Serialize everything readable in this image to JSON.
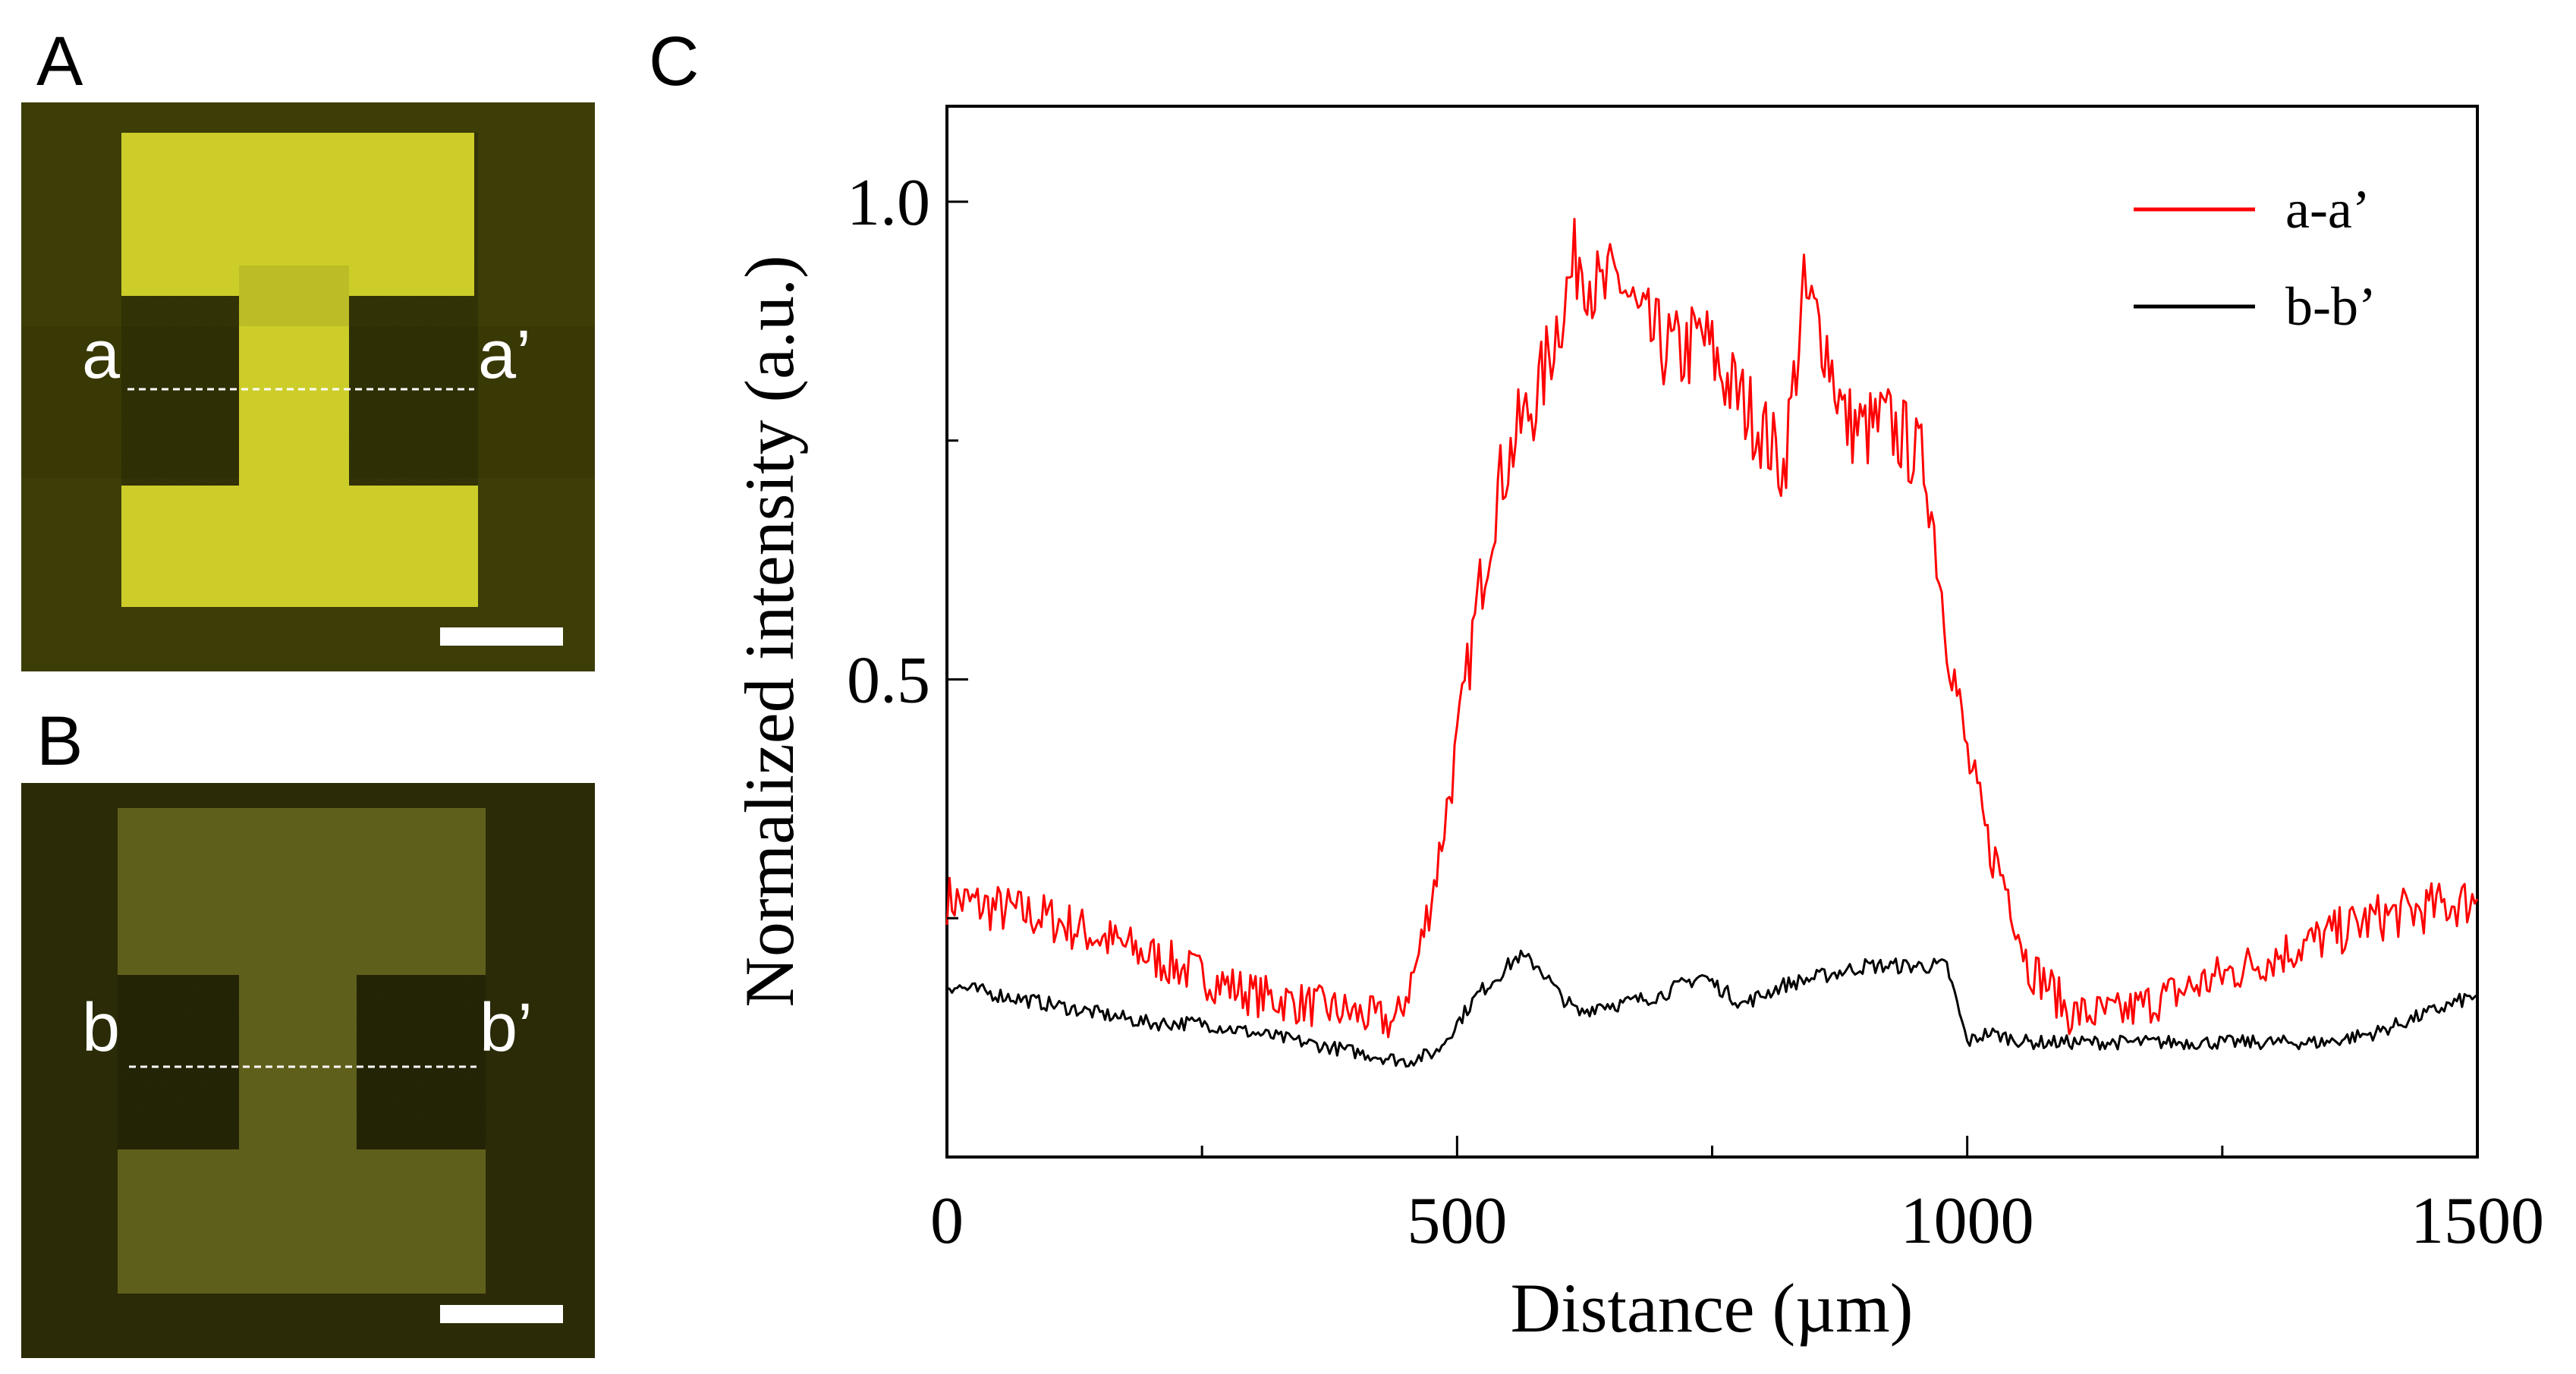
{
  "panels": {
    "a": {
      "letter": "A",
      "left_label": "a",
      "right_label": "a’"
    },
    "b": {
      "letter": "B",
      "left_label": "b",
      "right_label": "b’"
    },
    "c": {
      "letter": "C"
    }
  },
  "colors": {
    "image_a_bg": "#3d3d07",
    "image_a_shape": "#cdcd2a",
    "image_b_bg": "#2b2b07",
    "image_b_shape": "#5f5f1c",
    "series_aa": "#ff0000",
    "series_bb": "#000000"
  },
  "chart_data": {
    "type": "line",
    "title": "",
    "xlabel": "Distance (µm)",
    "ylabel": "Normalized intensity (a.u.)",
    "xlim": [
      0,
      1500
    ],
    "ylim": [
      0.0,
      1.1
    ],
    "xticks": [
      0,
      500,
      1000,
      1500
    ],
    "xtick_labels": [
      "0",
      "500",
      "1000",
      "1500"
    ],
    "yticks": [
      0.5,
      1.0
    ],
    "ytick_labels": [
      "0.5",
      "1.0"
    ],
    "legend_position": "top-right",
    "series": [
      {
        "name": "a-a’",
        "x": [
          0,
          50,
          100,
          150,
          200,
          250,
          300,
          350,
          400,
          440,
          460,
          480,
          500,
          520,
          540,
          560,
          580,
          600,
          620,
          640,
          660,
          680,
          700,
          720,
          740,
          760,
          780,
          800,
          820,
          840,
          860,
          880,
          900,
          920,
          940,
          960,
          980,
          1000,
          1020,
          1040,
          1060,
          1080,
          1100,
          1150,
          1200,
          1250,
          1300,
          1350,
          1400,
          1450,
          1500
        ],
        "y": [
          0.27,
          0.26,
          0.25,
          0.23,
          0.21,
          0.19,
          0.17,
          0.16,
          0.15,
          0.14,
          0.2,
          0.3,
          0.43,
          0.58,
          0.7,
          0.76,
          0.8,
          0.88,
          0.95,
          0.9,
          0.92,
          0.87,
          0.85,
          0.84,
          0.86,
          0.82,
          0.79,
          0.76,
          0.72,
          0.9,
          0.86,
          0.77,
          0.76,
          0.77,
          0.75,
          0.72,
          0.55,
          0.42,
          0.33,
          0.28,
          0.2,
          0.18,
          0.15,
          0.15,
          0.17,
          0.19,
          0.21,
          0.23,
          0.25,
          0.26,
          0.27
        ]
      },
      {
        "name": "b-b’",
        "x": [
          0,
          50,
          100,
          150,
          200,
          250,
          300,
          350,
          400,
          450,
          480,
          500,
          520,
          540,
          560,
          580,
          600,
          620,
          640,
          660,
          700,
          740,
          780,
          820,
          860,
          900,
          940,
          980,
          1000,
          1020,
          1060,
          1100,
          1150,
          1200,
          1250,
          1300,
          1350,
          1400,
          1450,
          1500
        ],
        "y": [
          0.18,
          0.17,
          0.16,
          0.15,
          0.14,
          0.14,
          0.13,
          0.12,
          0.11,
          0.1,
          0.11,
          0.14,
          0.17,
          0.19,
          0.21,
          0.2,
          0.17,
          0.15,
          0.16,
          0.16,
          0.17,
          0.19,
          0.16,
          0.18,
          0.19,
          0.2,
          0.2,
          0.2,
          0.12,
          0.13,
          0.12,
          0.12,
          0.12,
          0.12,
          0.12,
          0.12,
          0.12,
          0.13,
          0.15,
          0.17
        ]
      }
    ]
  }
}
